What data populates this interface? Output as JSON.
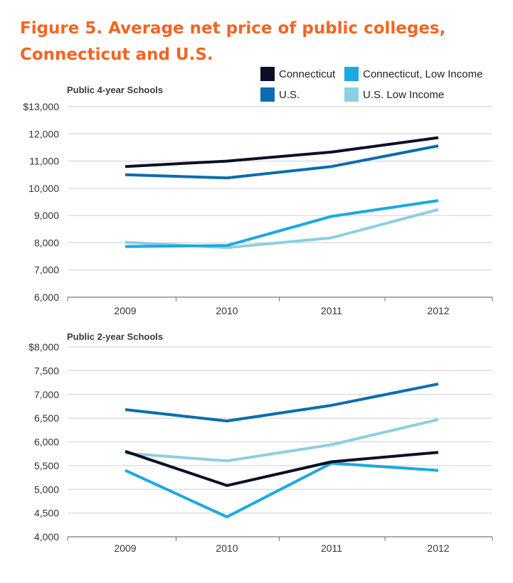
{
  "figure_title": "Figure 5. Average net price of public colleges, Connecticut and U.S.",
  "legend": [
    {
      "label": "Connecticut",
      "color": "#0b1026"
    },
    {
      "label": "Connecticut, Low Income",
      "color": "#1ba9e1"
    },
    {
      "label": "U.S.",
      "color": "#0a6db0"
    },
    {
      "label": "U.S. Low Income",
      "color": "#8ccfe3"
    }
  ],
  "chart_data": [
    {
      "type": "line",
      "title": "Public 4-year Schools",
      "categories": [
        "2009",
        "2010",
        "2011",
        "2012"
      ],
      "ylim": [
        6000,
        13000
      ],
      "yticks": [
        6000,
        7000,
        8000,
        9000,
        10000,
        11000,
        12000,
        13000
      ],
      "ytick_labels": [
        "6,000",
        "7,000",
        "8,000",
        "9,000",
        "10,000",
        "11,000",
        "12,000",
        "$13,000"
      ],
      "grid": true,
      "series": [
        {
          "name": "Connecticut",
          "color": "#0b1026",
          "values": [
            10800,
            11000,
            11330,
            11860
          ]
        },
        {
          "name": "U.S.",
          "color": "#0a6db0",
          "values": [
            10500,
            10380,
            10800,
            11560
          ]
        },
        {
          "name": "Connecticut, Low Income",
          "color": "#1ba9e1",
          "values": [
            7860,
            7900,
            8970,
            9550
          ]
        },
        {
          "name": "U.S. Low Income",
          "color": "#8ccfe3",
          "values": [
            8020,
            7820,
            8180,
            9220
          ]
        }
      ]
    },
    {
      "type": "line",
      "title": "Public 2-year Schools",
      "categories": [
        "2009",
        "2010",
        "2011",
        "2012"
      ],
      "ylim": [
        4000,
        8000
      ],
      "yticks": [
        4000,
        4500,
        5000,
        5500,
        6000,
        6500,
        7000,
        7500,
        8000
      ],
      "ytick_labels": [
        "4,000",
        "4,500",
        "5,000",
        "5,500",
        "6,000",
        "6,500",
        "7,000",
        "7,500",
        "$8,000"
      ],
      "grid": true,
      "series": [
        {
          "name": "Connecticut",
          "color": "#0b1026",
          "values": [
            5800,
            5080,
            5580,
            5780
          ]
        },
        {
          "name": "U.S.",
          "color": "#0a6db0",
          "values": [
            6680,
            6440,
            6770,
            7220
          ]
        },
        {
          "name": "Connecticut, Low Income",
          "color": "#1ba9e1",
          "values": [
            5400,
            4420,
            5550,
            5400
          ]
        },
        {
          "name": "U.S. Low Income",
          "color": "#8ccfe3",
          "values": [
            5760,
            5600,
            5940,
            6470
          ]
        }
      ]
    }
  ]
}
